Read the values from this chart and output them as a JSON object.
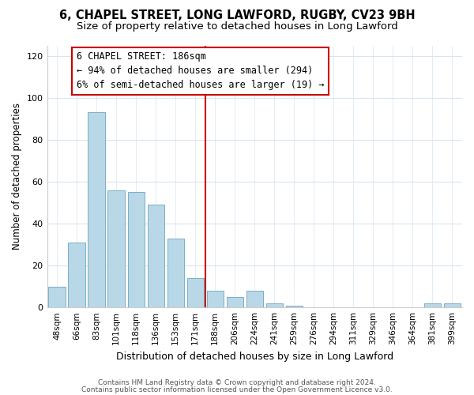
{
  "title": "6, CHAPEL STREET, LONG LAWFORD, RUGBY, CV23 9BH",
  "subtitle": "Size of property relative to detached houses in Long Lawford",
  "xlabel": "Distribution of detached houses by size in Long Lawford",
  "ylabel": "Number of detached properties",
  "bin_labels": [
    "48sqm",
    "66sqm",
    "83sqm",
    "101sqm",
    "118sqm",
    "136sqm",
    "153sqm",
    "171sqm",
    "188sqm",
    "206sqm",
    "224sqm",
    "241sqm",
    "259sqm",
    "276sqm",
    "294sqm",
    "311sqm",
    "329sqm",
    "346sqm",
    "364sqm",
    "381sqm",
    "399sqm"
  ],
  "bar_heights": [
    10,
    31,
    93,
    56,
    55,
    49,
    33,
    14,
    8,
    5,
    8,
    2,
    1,
    0,
    0,
    0,
    0,
    0,
    0,
    2,
    2
  ],
  "bar_color": "#b8d8e8",
  "bar_edge_color": "#7aafc4",
  "vline_color": "#cc0000",
  "annotation_text": "6 CHAPEL STREET: 186sqm\n← 94% of detached houses are smaller (294)\n6% of semi-detached houses are larger (19) →",
  "annotation_box_color": "#ffffff",
  "annotation_box_edge": "#cc0000",
  "ylim": [
    0,
    125
  ],
  "yticks": [
    0,
    20,
    40,
    60,
    80,
    100,
    120
  ],
  "footer1": "Contains HM Land Registry data © Crown copyright and database right 2024.",
  "footer2": "Contains public sector information licensed under the Open Government Licence v3.0.",
  "title_fontsize": 10.5,
  "subtitle_fontsize": 9.5,
  "bg_color": "#ffffff",
  "grid_color": "#d8e4f0",
  "annotation_fontsize": 8.5
}
